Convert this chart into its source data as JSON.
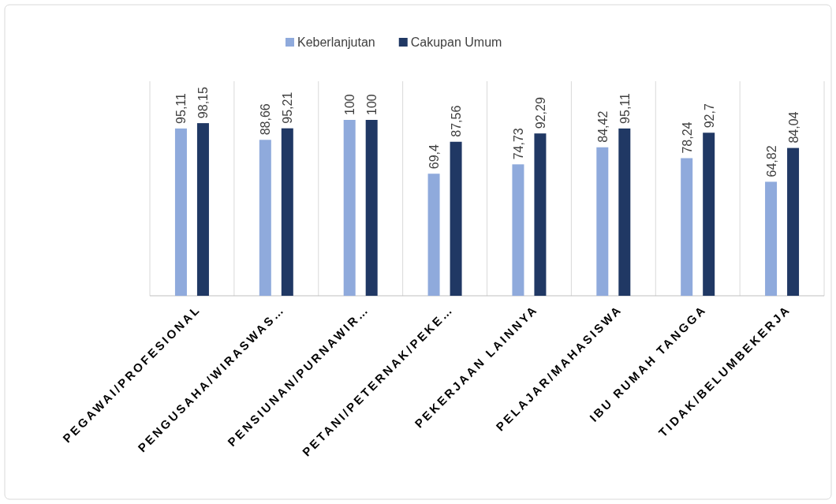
{
  "chart_data": {
    "type": "bar",
    "categories": [
      "PEGAWAI/PROFESIONAL",
      "PENGUSAHA/WIRASWAS…",
      "PENSIUNAN/PURNAWIR…",
      "PETANI/PETERNAK/PEKE…",
      "PEKERJAAN LAINNYA",
      "PELAJAR/MAHASISWA",
      "IBU RUMAH TANGGA",
      "TIDAK/BELUMBEKERJA"
    ],
    "series": [
      {
        "name": "Keberlanjutan",
        "color": "#8faadc",
        "values": [
          95.11,
          88.66,
          100,
          69.4,
          74.73,
          84.42,
          78.24,
          64.82
        ],
        "value_labels": [
          "95,11",
          "88,66",
          "100",
          "69,4",
          "74,73",
          "84,42",
          "78,24",
          "64,82"
        ]
      },
      {
        "name": "Cakupan Umum",
        "color": "#203864",
        "values": [
          98.15,
          95.21,
          100,
          87.56,
          92.29,
          95.11,
          92.7,
          84.04
        ],
        "value_labels": [
          "98,15",
          "95,21",
          "100",
          "87,56",
          "92,29",
          "95,11",
          "92,7",
          "84,04"
        ]
      }
    ],
    "grid": "x",
    "legend": "top"
  }
}
